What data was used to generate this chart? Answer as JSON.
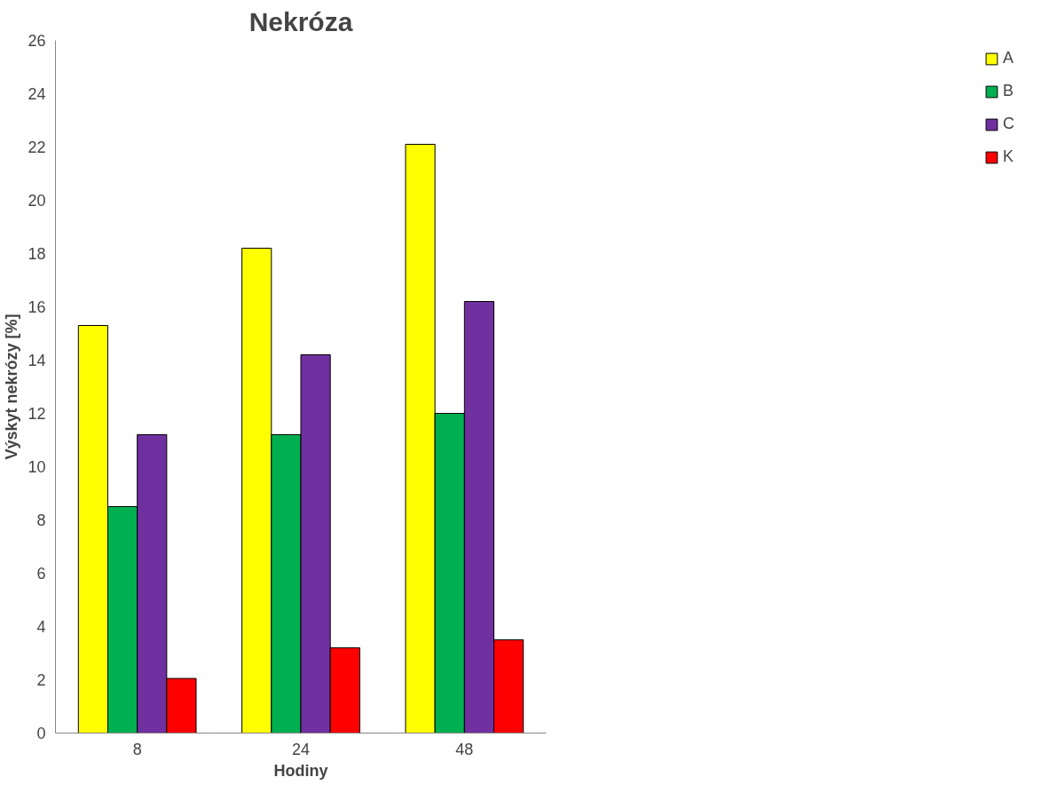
{
  "chart_data": {
    "type": "bar",
    "title": "Nekróza",
    "xlabel": "Hodiny",
    "ylabel": "Výskyt nekrózy [%]",
    "categories": [
      "8",
      "24",
      "48"
    ],
    "series": [
      {
        "name": "A",
        "color": "#ffff00",
        "values": [
          15.3,
          18.2,
          22.1
        ]
      },
      {
        "name": "B",
        "color": "#00b050",
        "values": [
          8.5,
          11.2,
          12.0
        ]
      },
      {
        "name": "C",
        "color": "#7030a0",
        "values": [
          11.2,
          14.2,
          16.2
        ]
      },
      {
        "name": "K",
        "color": "#ff0000",
        "values": [
          2.05,
          3.2,
          3.5
        ]
      }
    ],
    "ylim": [
      0,
      26
    ],
    "yticks": [
      0,
      2,
      4,
      6,
      8,
      10,
      12,
      14,
      16,
      18,
      20,
      22,
      24,
      26
    ],
    "grid": false,
    "legend": "right"
  }
}
